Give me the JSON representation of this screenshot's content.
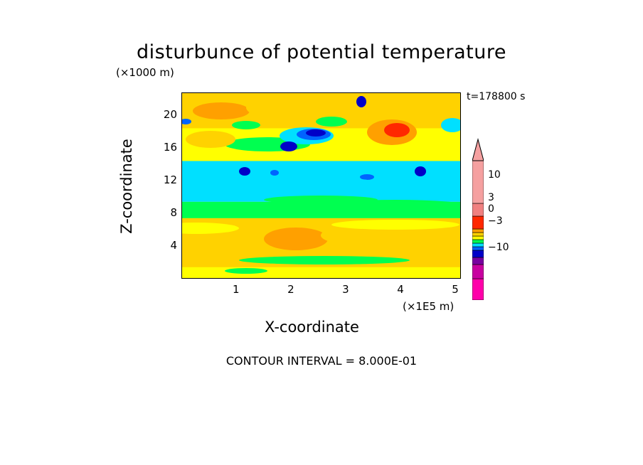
{
  "chart_data": {
    "type": "heatmap",
    "title": "disturbunce of potential temperature",
    "xlabel": "X-coordinate",
    "ylabel": "Z-coordinate",
    "x_unit_label": "(×1E5 m)",
    "y_unit_label": "(×1000 m)",
    "time_label": "t=178800 s",
    "annotation": "CONTOUR INTERVAL = 8.000E-01",
    "xlim": [
      0,
      5.1
    ],
    "ylim": [
      0,
      22.8
    ],
    "x_ticks": [
      "1",
      "2",
      "3",
      "4",
      "5"
    ],
    "y_ticks": [
      "4",
      "8",
      "12",
      "16",
      "20"
    ],
    "colorbar": {
      "tick_labels": [
        "10",
        "3",
        "0",
        "−3",
        "−10"
      ],
      "tick_values": [
        10,
        3,
        0,
        -3,
        -10
      ],
      "colors": [
        "#ff00aa",
        "#c800a0",
        "#7800a0",
        "#0000c8",
        "#0064ff",
        "#00e0ff",
        "#00ff50",
        "#ffff00",
        "#ffd200",
        "#ffa000",
        "#ff2800",
        "#f08080",
        "#f5a0a0"
      ]
    },
    "bands": [
      {
        "z_range": [
          0,
          1.5
        ],
        "dominant": "yellow"
      },
      {
        "z_range": [
          1.5,
          7.5
        ],
        "dominant": "orange/yellow"
      },
      {
        "z_range": [
          7.5,
          9.5
        ],
        "dominant": "green"
      },
      {
        "z_range": [
          9.5,
          14.5
        ],
        "dominant": "cyan"
      },
      {
        "z_range": [
          14.5,
          18.5
        ],
        "dominant": "yellow with orange and blue patches"
      },
      {
        "z_range": [
          18.5,
          22.8
        ],
        "dominant": "mixed orange/yellow/green"
      }
    ]
  },
  "colors": {
    "yellow": "#ffff00",
    "gold": "#ffd200",
    "orange": "#ffa000",
    "red": "#ff2800",
    "green": "#00ff50",
    "cyan": "#00e0ff",
    "blue": "#0064ff",
    "navy": "#0000c8"
  }
}
